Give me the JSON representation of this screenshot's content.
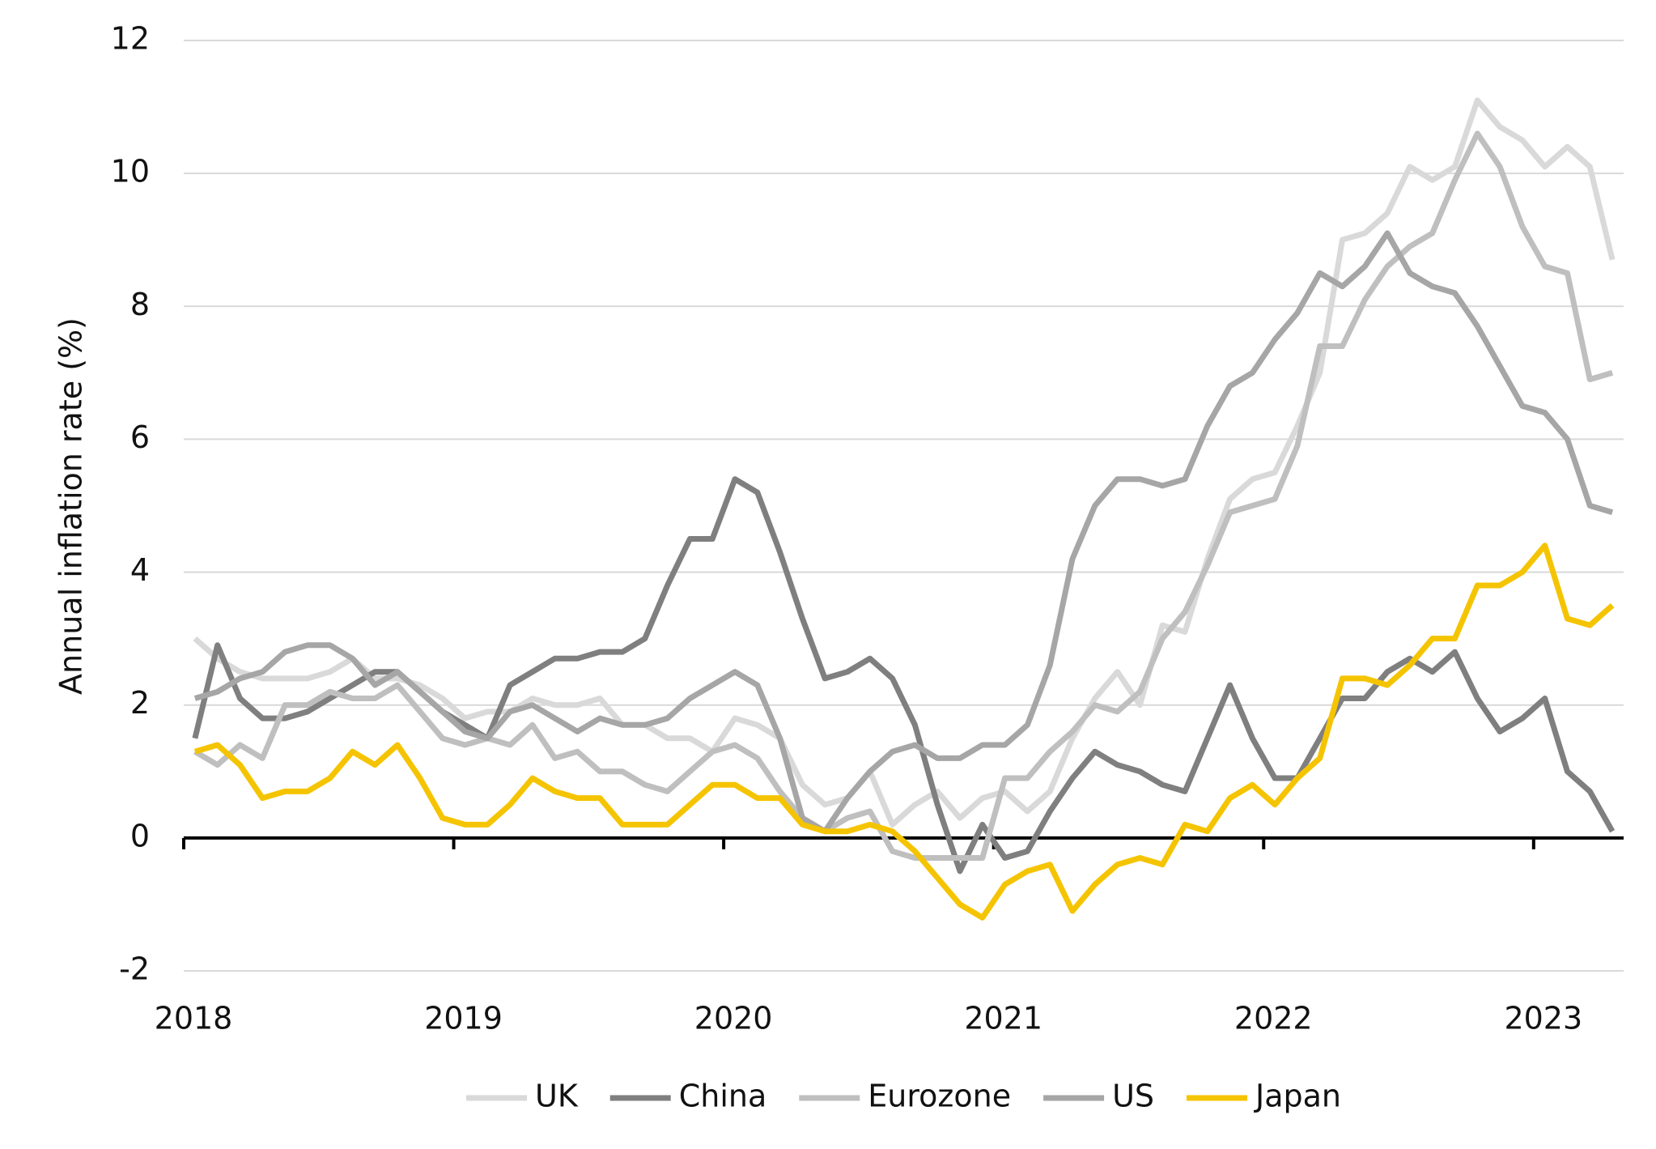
{
  "chart_data": {
    "type": "line",
    "y_label": "Annual inflation rate (%)",
    "categories": [
      "2018",
      null,
      null,
      null,
      null,
      null,
      null,
      null,
      null,
      null,
      null,
      null,
      "2019",
      null,
      null,
      null,
      null,
      null,
      null,
      null,
      null,
      null,
      null,
      null,
      "2020",
      null,
      null,
      null,
      null,
      null,
      null,
      null,
      null,
      null,
      null,
      null,
      "2021",
      null,
      null,
      null,
      null,
      null,
      null,
      null,
      null,
      null,
      null,
      null,
      "2022",
      null,
      null,
      null,
      null,
      null,
      null,
      null,
      null,
      null,
      null,
      null,
      "2023",
      null,
      null,
      null
    ],
    "series": [
      {
        "name": "UK",
        "color": "#d9d9d9",
        "values": [
          3.0,
          2.7,
          2.5,
          2.4,
          2.4,
          2.4,
          2.5,
          2.7,
          2.4,
          2.4,
          2.3,
          2.1,
          1.8,
          1.9,
          1.9,
          2.1,
          2.0,
          2.0,
          2.1,
          1.7,
          1.7,
          1.5,
          1.5,
          1.3,
          1.8,
          1.7,
          1.5,
          0.8,
          0.5,
          0.6,
          1.0,
          0.2,
          0.5,
          0.7,
          0.3,
          0.6,
          0.7,
          0.4,
          0.7,
          1.5,
          2.1,
          2.5,
          2.0,
          3.2,
          3.1,
          4.2,
          5.1,
          5.4,
          5.5,
          6.2,
          7.0,
          9.0,
          9.1,
          9.4,
          10.1,
          9.9,
          10.1,
          11.1,
          10.7,
          10.5,
          10.1,
          10.4,
          10.1,
          8.7
        ]
      },
      {
        "name": "China",
        "color": "#7f7f7f",
        "values": [
          1.5,
          2.9,
          2.1,
          1.8,
          1.8,
          1.9,
          2.1,
          2.3,
          2.5,
          2.5,
          2.2,
          1.9,
          1.7,
          1.5,
          2.3,
          2.5,
          2.7,
          2.7,
          2.8,
          2.8,
          3.0,
          3.8,
          4.5,
          4.5,
          5.4,
          5.2,
          4.3,
          3.3,
          2.4,
          2.5,
          2.7,
          2.4,
          1.7,
          0.5,
          -0.5,
          0.2,
          -0.3,
          -0.2,
          0.4,
          0.9,
          1.3,
          1.1,
          1.0,
          0.8,
          0.7,
          1.5,
          2.3,
          1.5,
          0.9,
          0.9,
          1.5,
          2.1,
          2.1,
          2.5,
          2.7,
          2.5,
          2.8,
          2.1,
          1.6,
          1.8,
          2.1,
          1.0,
          0.7,
          0.1
        ]
      },
      {
        "name": "Eurozone",
        "color": "#bfbfbf",
        "values": [
          1.3,
          1.1,
          1.4,
          1.2,
          2.0,
          2.0,
          2.2,
          2.1,
          2.1,
          2.3,
          1.9,
          1.5,
          1.4,
          1.5,
          1.4,
          1.7,
          1.2,
          1.3,
          1.0,
          1.0,
          0.8,
          0.7,
          1.0,
          1.3,
          1.4,
          1.2,
          0.7,
          0.3,
          0.1,
          0.3,
          0.4,
          -0.2,
          -0.3,
          -0.3,
          -0.3,
          -0.3,
          0.9,
          0.9,
          1.3,
          1.6,
          2.0,
          1.9,
          2.2,
          3.0,
          3.4,
          4.1,
          4.9,
          5.0,
          5.1,
          5.9,
          7.4,
          7.4,
          8.1,
          8.6,
          8.9,
          9.1,
          9.9,
          10.6,
          10.1,
          9.2,
          8.6,
          8.5,
          6.9,
          7.0
        ]
      },
      {
        "name": "US",
        "color": "#a6a6a6",
        "values": [
          2.1,
          2.2,
          2.4,
          2.5,
          2.8,
          2.9,
          2.9,
          2.7,
          2.3,
          2.5,
          2.2,
          1.9,
          1.6,
          1.5,
          1.9,
          2.0,
          1.8,
          1.6,
          1.8,
          1.7,
          1.7,
          1.8,
          2.1,
          2.3,
          2.5,
          2.3,
          1.5,
          0.3,
          0.1,
          0.6,
          1.0,
          1.3,
          1.4,
          1.2,
          1.2,
          1.4,
          1.4,
          1.7,
          2.6,
          4.2,
          5.0,
          5.4,
          5.4,
          5.3,
          5.4,
          6.2,
          6.8,
          7.0,
          7.5,
          7.9,
          8.5,
          8.3,
          8.6,
          9.1,
          8.5,
          8.3,
          8.2,
          7.7,
          7.1,
          6.5,
          6.4,
          6.0,
          5.0,
          4.9
        ]
      },
      {
        "name": "Japan",
        "color": "#f5c400",
        "values": [
          1.3,
          1.4,
          1.1,
          0.6,
          0.7,
          0.7,
          0.9,
          1.3,
          1.1,
          1.4,
          0.9,
          0.3,
          0.2,
          0.2,
          0.5,
          0.9,
          0.7,
          0.6,
          0.6,
          0.2,
          0.2,
          0.2,
          0.5,
          0.8,
          0.8,
          0.6,
          0.6,
          0.2,
          0.1,
          0.1,
          0.2,
          0.1,
          -0.2,
          -0.6,
          -1.0,
          -1.2,
          -0.7,
          -0.5,
          -0.4,
          -1.1,
          -0.7,
          -0.4,
          -0.3,
          -0.4,
          0.2,
          0.1,
          0.6,
          0.8,
          0.5,
          0.9,
          1.2,
          2.4,
          2.4,
          2.3,
          2.6,
          3.0,
          3.0,
          3.8,
          3.8,
          4.0,
          4.4,
          3.3,
          3.2,
          3.5
        ]
      }
    ],
    "ylim": [
      -2,
      12
    ],
    "yticks": [
      -2,
      0,
      2,
      4,
      6,
      8,
      10,
      12
    ],
    "grid": true,
    "legend": "bottom"
  }
}
